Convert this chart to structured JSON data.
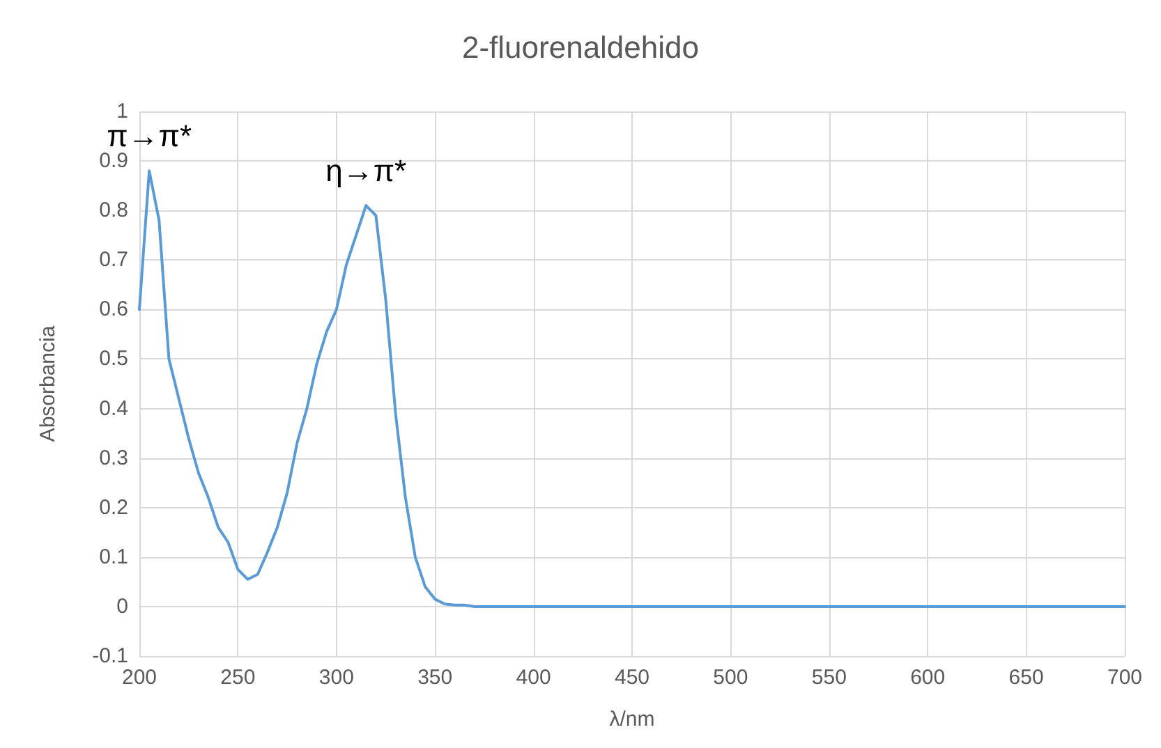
{
  "chart_data": {
    "type": "line",
    "title": "2-fluorenaldehido",
    "xlabel": "λ/nm",
    "ylabel": "Absorbancia",
    "x": [
      200,
      205,
      210,
      215,
      220,
      225,
      230,
      235,
      240,
      245,
      250,
      255,
      260,
      265,
      270,
      275,
      280,
      285,
      290,
      295,
      300,
      305,
      310,
      315,
      320,
      325,
      330,
      335,
      340,
      345,
      350,
      355,
      360,
      365,
      370,
      400,
      450,
      500,
      550,
      600,
      650,
      700
    ],
    "series": [
      {
        "color": "#5b9bd5",
        "values": [
          0.6,
          0.88,
          0.78,
          0.5,
          0.42,
          0.34,
          0.27,
          0.22,
          0.16,
          0.13,
          0.075,
          0.055,
          0.065,
          0.11,
          0.16,
          0.23,
          0.33,
          0.4,
          0.49,
          0.555,
          0.6,
          0.69,
          0.75,
          0.81,
          0.79,
          0.62,
          0.39,
          0.22,
          0.1,
          0.04,
          0.015,
          0.005,
          0.003,
          0.003,
          0,
          0,
          0,
          0,
          0,
          0,
          0,
          0
        ]
      }
    ],
    "xlim": [
      200,
      700
    ],
    "xticks": [
      200,
      250,
      300,
      350,
      400,
      450,
      500,
      550,
      600,
      650,
      700
    ],
    "ylim": [
      -0.1,
      1
    ],
    "yticks": [
      -0.1,
      0,
      0.1,
      0.2,
      0.3,
      0.4,
      0.5,
      0.6,
      0.7,
      0.8,
      0.9,
      1
    ],
    "grid": true,
    "marker": "none",
    "line_style": "solid",
    "annotations": [
      {
        "text": "π→π*",
        "x": 205,
        "y": 0.88
      },
      {
        "text": "η→π*",
        "x": 315,
        "y": 0.81
      }
    ]
  }
}
